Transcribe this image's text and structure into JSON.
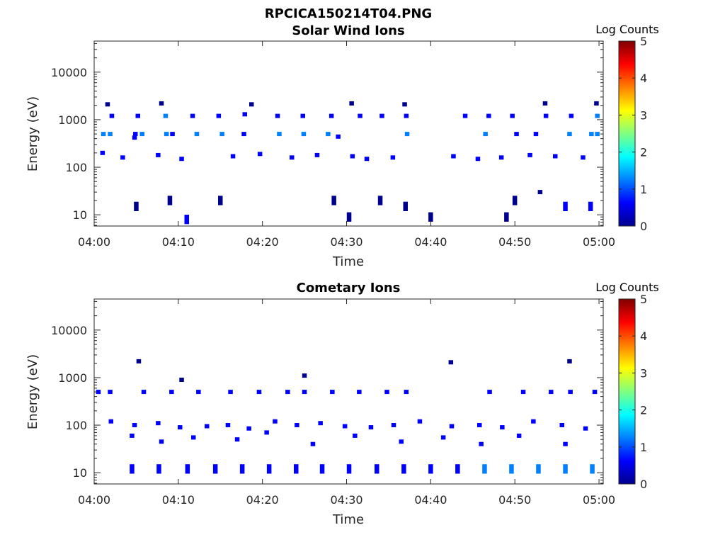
{
  "figure_title": "RPCICA150214T04.PNG",
  "colormap": [
    "#00008f",
    "#0000ff",
    "#0080ff",
    "#00ffff",
    "#80ff80",
    "#ffff00",
    "#ff8000",
    "#ff0000",
    "#800000"
  ],
  "chart_data": [
    {
      "type": "heatmap",
      "title": "Solar Wind Ions",
      "xlabel": "Time",
      "ylabel": "Energy (eV)",
      "x_ticks": [
        "04:00",
        "04:10",
        "04:20",
        "04:30",
        "04:40",
        "04:50",
        "05:00"
      ],
      "x_range_minutes": [
        0,
        60.5
      ],
      "y_scale": "log",
      "y_ticks": [
        "10",
        "100",
        "1000",
        "10000"
      ],
      "ylim": [
        5.8,
        45000
      ],
      "colorbar": {
        "label": "Log Counts",
        "ticks": [
          "0",
          "1",
          "2",
          "3",
          "4",
          "5"
        ],
        "range": [
          0,
          5
        ]
      },
      "cells": [
        [
          1.9,
          500,
          1.2
        ],
        [
          1.1,
          500,
          1.0
        ],
        [
          4.9,
          500,
          0.9
        ],
        [
          5.7,
          500,
          1.1
        ],
        [
          8.6,
          500,
          1.2
        ],
        [
          9.3,
          500,
          0.9
        ],
        [
          12.2,
          500,
          1.1
        ],
        [
          15.2,
          500,
          1.0
        ],
        [
          17.8,
          500,
          0.9
        ],
        [
          22.0,
          500,
          1.2
        ],
        [
          24.9,
          500,
          1.2
        ],
        [
          27.8,
          500,
          1.4
        ],
        [
          37.2,
          500,
          1.3
        ],
        [
          46.5,
          500,
          1.2
        ],
        [
          50.2,
          500,
          0.9
        ],
        [
          52.5,
          500,
          0.9
        ],
        [
          56.5,
          500,
          1.1
        ],
        [
          59.1,
          500,
          1.0
        ],
        [
          59.8,
          500,
          1.2
        ],
        [
          4.8,
          420,
          0.6
        ],
        [
          29.0,
          440,
          0.6
        ],
        [
          2.1,
          1200,
          0.9
        ],
        [
          5.2,
          1200,
          0.9
        ],
        [
          8.5,
          1200,
          1.0
        ],
        [
          11.7,
          1200,
          0.9
        ],
        [
          14.8,
          1200,
          0.7
        ],
        [
          17.9,
          1300,
          0.8
        ],
        [
          21.8,
          1200,
          0.7
        ],
        [
          24.8,
          1200,
          0.9
        ],
        [
          28.2,
          1200,
          0.8
        ],
        [
          31.6,
          1200,
          0.6
        ],
        [
          34.2,
          1200,
          0.7
        ],
        [
          37.1,
          1200,
          0.9
        ],
        [
          44.1,
          1200,
          0.7
        ],
        [
          46.9,
          1200,
          0.9
        ],
        [
          49.7,
          1200,
          0.6
        ],
        [
          53.7,
          1200,
          0.9
        ],
        [
          56.7,
          1200,
          0.9
        ],
        [
          59.8,
          1200,
          1.0
        ],
        [
          1.0,
          200,
          0.5
        ],
        [
          3.4,
          160,
          0.4
        ],
        [
          7.6,
          180,
          0.4
        ],
        [
          10.4,
          150,
          0.4
        ],
        [
          16.5,
          170,
          0.4
        ],
        [
          19.7,
          190,
          0.4
        ],
        [
          23.5,
          160,
          0.4
        ],
        [
          26.5,
          180,
          0.4
        ],
        [
          30.7,
          170,
          0.4
        ],
        [
          32.4,
          150,
          0.4
        ],
        [
          35.5,
          160,
          0.4
        ],
        [
          42.7,
          170,
          0.4
        ],
        [
          45.6,
          150,
          0.4
        ],
        [
          48.4,
          160,
          0.4
        ],
        [
          51.8,
          180,
          0.4
        ],
        [
          54.8,
          170,
          0.4
        ],
        [
          58.1,
          160,
          0.4
        ],
        [
          1.6,
          2100,
          0.3
        ],
        [
          8.0,
          2200,
          0.3
        ],
        [
          18.7,
          2100,
          0.3
        ],
        [
          30.6,
          2200,
          0.3
        ],
        [
          36.9,
          2100,
          0.3
        ],
        [
          53.6,
          2200,
          0.3
        ],
        [
          59.7,
          2200,
          0.3
        ],
        [
          5.0,
          15,
          0.3
        ],
        [
          9.0,
          20,
          0.3
        ],
        [
          11.0,
          8,
          0.5
        ],
        [
          15.0,
          20,
          0.3
        ],
        [
          28.5,
          20,
          0.3
        ],
        [
          30.3,
          9,
          0.3
        ],
        [
          34.0,
          20,
          0.3
        ],
        [
          37.0,
          15,
          0.3
        ],
        [
          40.0,
          9,
          0.3
        ],
        [
          49.0,
          9,
          0.3
        ],
        [
          50.0,
          20,
          0.3
        ],
        [
          53.0,
          30,
          0.3
        ],
        [
          56.0,
          15,
          0.4
        ],
        [
          59.0,
          15,
          0.5
        ]
      ]
    },
    {
      "type": "heatmap",
      "title": "Cometary Ions",
      "xlabel": "Time",
      "ylabel": "Energy (eV)",
      "x_ticks": [
        "04:00",
        "04:10",
        "04:20",
        "04:30",
        "04:40",
        "04:50",
        "05:00"
      ],
      "x_range_minutes": [
        0,
        60.5
      ],
      "y_scale": "log",
      "y_ticks": [
        "10",
        "100",
        "1000",
        "10000"
      ],
      "ylim": [
        5.8,
        45000
      ],
      "colorbar": {
        "label": "Log Counts",
        "ticks": [
          "0",
          "1",
          "2",
          "3",
          "4",
          "5"
        ],
        "range": [
          0,
          5
        ]
      },
      "cells": [
        [
          0.5,
          500,
          0.5
        ],
        [
          1.9,
          500,
          0.5
        ],
        [
          5.9,
          500,
          0.5
        ],
        [
          9.2,
          500,
          0.5
        ],
        [
          12.4,
          500,
          0.5
        ],
        [
          16.2,
          500,
          0.5
        ],
        [
          19.6,
          500,
          0.5
        ],
        [
          23.0,
          500,
          0.5
        ],
        [
          25.0,
          500,
          0.5
        ],
        [
          28.3,
          500,
          0.5
        ],
        [
          31.5,
          500,
          0.5
        ],
        [
          34.8,
          500,
          0.5
        ],
        [
          37.1,
          500,
          0.5
        ],
        [
          47.0,
          500,
          0.5
        ],
        [
          51.0,
          500,
          0.5
        ],
        [
          54.3,
          500,
          0.5
        ],
        [
          56.6,
          500,
          0.5
        ],
        [
          59.5,
          500,
          0.5
        ],
        [
          2.0,
          120,
          0.4
        ],
        [
          4.8,
          100,
          0.4
        ],
        [
          7.6,
          110,
          0.4
        ],
        [
          10.2,
          90,
          0.4
        ],
        [
          13.4,
          95,
          0.4
        ],
        [
          15.9,
          100,
          0.4
        ],
        [
          18.4,
          85,
          0.4
        ],
        [
          21.5,
          120,
          0.4
        ],
        [
          24.1,
          100,
          0.4
        ],
        [
          26.9,
          110,
          0.4
        ],
        [
          29.8,
          95,
          0.4
        ],
        [
          32.9,
          90,
          0.4
        ],
        [
          35.6,
          100,
          0.4
        ],
        [
          38.7,
          120,
          0.4
        ],
        [
          42.5,
          95,
          0.4
        ],
        [
          45.8,
          100,
          0.4
        ],
        [
          48.5,
          90,
          0.4
        ],
        [
          52.2,
          120,
          0.4
        ],
        [
          55.6,
          100,
          0.4
        ],
        [
          58.4,
          85,
          0.4
        ],
        [
          4.5,
          60,
          0.4
        ],
        [
          8.0,
          45,
          0.4
        ],
        [
          11.8,
          55,
          0.4
        ],
        [
          17.0,
          50,
          0.4
        ],
        [
          20.5,
          70,
          0.4
        ],
        [
          26.0,
          40,
          0.4
        ],
        [
          31.0,
          60,
          0.4
        ],
        [
          36.5,
          45,
          0.4
        ],
        [
          41.5,
          55,
          0.4
        ],
        [
          46.0,
          40,
          0.4
        ],
        [
          50.5,
          60,
          0.4
        ],
        [
          56.0,
          40,
          0.4
        ],
        [
          4.5,
          12,
          0.6
        ],
        [
          7.7,
          12,
          0.6
        ],
        [
          11.1,
          12,
          0.6
        ],
        [
          14.4,
          12,
          0.6
        ],
        [
          17.6,
          12,
          0.6
        ],
        [
          20.8,
          12,
          0.6
        ],
        [
          24.0,
          12,
          0.9
        ],
        [
          27.1,
          12,
          0.6
        ],
        [
          30.3,
          12,
          0.6
        ],
        [
          33.6,
          12,
          0.6
        ],
        [
          36.8,
          12,
          0.9
        ],
        [
          40.0,
          12,
          0.6
        ],
        [
          43.2,
          12,
          0.6
        ],
        [
          46.4,
          12,
          1.2
        ],
        [
          49.6,
          12,
          1.2
        ],
        [
          52.8,
          12,
          1.2
        ],
        [
          56.0,
          12,
          1.4
        ],
        [
          59.2,
          12,
          1.2
        ],
        [
          5.3,
          2200,
          0.3
        ],
        [
          10.4,
          900,
          0.3
        ],
        [
          25.0,
          1100,
          0.3
        ],
        [
          42.4,
          2100,
          0.3
        ],
        [
          56.5,
          2200,
          0.3
        ]
      ]
    }
  ]
}
